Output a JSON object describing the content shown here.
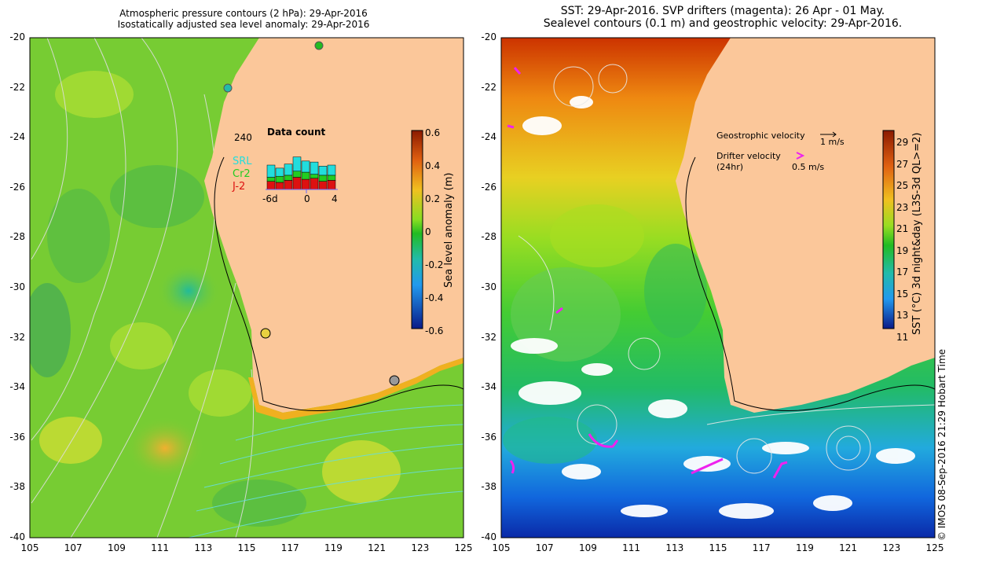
{
  "left_panel": {
    "title_line1": "Atmospheric pressure contours (2 hPa): 29-Apr-2016",
    "title_line2": "Isostatically adjusted sea level anomaly: 29-Apr-2016",
    "colorbar_label": "Sea level anomaly (m)",
    "colorbar_ticks": [
      "0.6",
      "0.4",
      "0.2",
      "0",
      "-0.2",
      "-0.4",
      "-0.6"
    ],
    "inset": {
      "title": "Data count",
      "max_label": "240",
      "x_ticks": [
        "-6d",
        "0",
        "4"
      ],
      "satellites": [
        {
          "name": "SRL",
          "color": "#22dddd"
        },
        {
          "name": "Cr2",
          "color": "#22cc22"
        },
        {
          "name": "J-2",
          "color": "#dd1111"
        }
      ],
      "bars_srl": [
        60,
        40,
        55,
        70,
        55,
        60,
        45,
        50
      ],
      "bars_cr2": [
        20,
        30,
        25,
        30,
        35,
        20,
        30,
        25
      ],
      "bars_j2": [
        40,
        35,
        45,
        60,
        50,
        55,
        40,
        45
      ]
    }
  },
  "right_panel": {
    "title_line1": "SST: 29-Apr-2016. SVP drifters (magenta): 26 Apr - 01 May.",
    "title_line2": "Sealevel contours (0.1 m) and geostrophic velocity: 29-Apr-2016.",
    "colorbar_label": "SST (°C) 3d night&day (L3S-3d QL>=2)",
    "colorbar_ticks": [
      "29",
      "27",
      "25",
      "23",
      "21",
      "19",
      "17",
      "15",
      "13",
      "11"
    ],
    "legend_geo": "Geostrophic velocity",
    "legend_geo_scale": "1 m/s",
    "legend_drifter": "Drifter velocity",
    "legend_drifter_sub": "(24hr)",
    "legend_drifter_scale": "0.5 m/s"
  },
  "axes": {
    "y_ticks": [
      "-20",
      "-22",
      "-24",
      "-26",
      "-28",
      "-30",
      "-32",
      "-34",
      "-36",
      "-38",
      "-40"
    ],
    "x_ticks": [
      "105",
      "107",
      "109",
      "111",
      "113",
      "115",
      "117",
      "119",
      "121",
      "123",
      "125"
    ]
  },
  "credit": "© IMOS 08-Sep-2016 21:29 Hobart Time",
  "colors": {
    "land": "#fbc79a",
    "ocean_green": "#55cc33",
    "warm": "#dd6611",
    "cold": "#1144cc"
  }
}
